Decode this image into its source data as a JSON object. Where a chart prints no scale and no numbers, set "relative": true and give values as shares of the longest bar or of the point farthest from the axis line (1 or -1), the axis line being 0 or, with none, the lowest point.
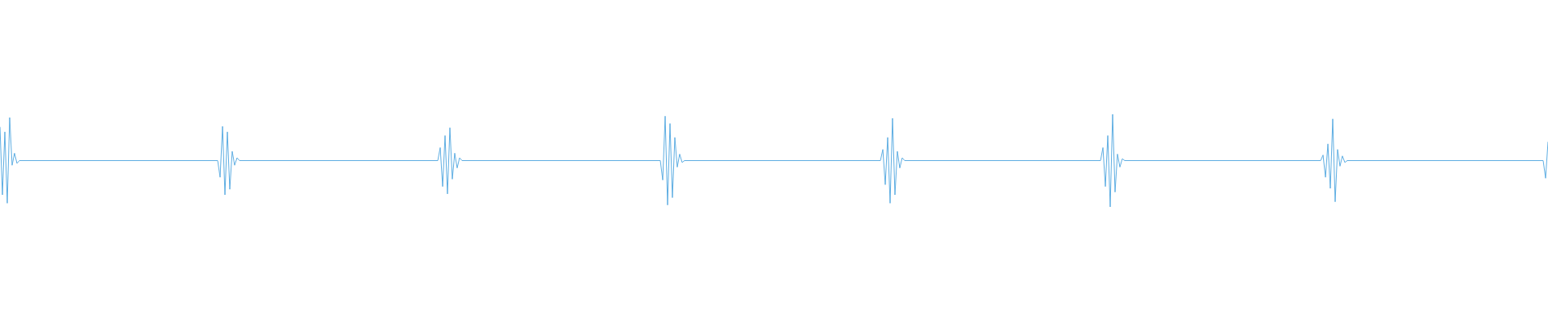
{
  "chart_data": {
    "type": "line",
    "relative": true,
    "color": "#5dade2",
    "categories": [
      null,
      null,
      null,
      null,
      null,
      null,
      null,
      null,
      null,
      null,
      null,
      null,
      null,
      null,
      null,
      null,
      null,
      null,
      null,
      null,
      null,
      null,
      null,
      null,
      null,
      null,
      null,
      null,
      null,
      null,
      null,
      null,
      null,
      null,
      null,
      null,
      null,
      null,
      null,
      null,
      null,
      null,
      null,
      null,
      null,
      null,
      null,
      null,
      null,
      null,
      null,
      null,
      null,
      null,
      null,
      null,
      null,
      null,
      null,
      null,
      null,
      null,
      null,
      null,
      null,
      null,
      null,
      null,
      null,
      null,
      null,
      null,
      null,
      null,
      null,
      null,
      null,
      null,
      null,
      null,
      null,
      null,
      null,
      null,
      null,
      null,
      null,
      null,
      null,
      null,
      null,
      null,
      null,
      null,
      null,
      null,
      null,
      null,
      null,
      null,
      null,
      null,
      null,
      null,
      null,
      null,
      null,
      null,
      null,
      null,
      null,
      null,
      null,
      null,
      null,
      null,
      null,
      null,
      null,
      null,
      null,
      null,
      null,
      null,
      null,
      null,
      null,
      null,
      null,
      null,
      null,
      null,
      null,
      null,
      null,
      null,
      null,
      null,
      null,
      null,
      null,
      null,
      null,
      null,
      null,
      null,
      null,
      null,
      null,
      null,
      null,
      null,
      null,
      null,
      null,
      null,
      null,
      null,
      null,
      null,
      null,
      null,
      null,
      null,
      null,
      null,
      null,
      null,
      null,
      null,
      null,
      null,
      null,
      null,
      null,
      null,
      null,
      null,
      null,
      null,
      null,
      null,
      null,
      null,
      null,
      null,
      null,
      null,
      null,
      null,
      null,
      null,
      null,
      null,
      null,
      null,
      null,
      null,
      null,
      null,
      null,
      null,
      null,
      null,
      null,
      null,
      null,
      null,
      null,
      null,
      null,
      null,
      null,
      null,
      null,
      null,
      null,
      null,
      null,
      null,
      null,
      null,
      null,
      null,
      null,
      null,
      null,
      null,
      null,
      null,
      null,
      null,
      null,
      null,
      null,
      null,
      null,
      null,
      null,
      null,
      null,
      null,
      null,
      null,
      null,
      null,
      null,
      null,
      null,
      null,
      null,
      null,
      null,
      null,
      null,
      null,
      null,
      null,
      null,
      null,
      null,
      null,
      null,
      null,
      null,
      null,
      null,
      null,
      null,
      null,
      null,
      null,
      null,
      null,
      null,
      null,
      null,
      null,
      null,
      null,
      null,
      null,
      null,
      null,
      null,
      null,
      null,
      null,
      null,
      null,
      null,
      null,
      null,
      null,
      null,
      null,
      null,
      null,
      null,
      null,
      null,
      null,
      null,
      null,
      null,
      null,
      null,
      null,
      null,
      null,
      null,
      null,
      null,
      null,
      null,
      null,
      null,
      null,
      null,
      null,
      null,
      null,
      null,
      null,
      null,
      null,
      null,
      null,
      null,
      null,
      null,
      null,
      null,
      null,
      null,
      null,
      null,
      null,
      null,
      null,
      null,
      null,
      null,
      null,
      null,
      null,
      null,
      null,
      null,
      null,
      null,
      null,
      null,
      null,
      null,
      null,
      null,
      null,
      null,
      null,
      null,
      null,
      null,
      null,
      null,
      null,
      null,
      null,
      null,
      null,
      null,
      null,
      null,
      null,
      null,
      null,
      null,
      null,
      null,
      null,
      null,
      null,
      null,
      null,
      null,
      null,
      null,
      null,
      null,
      null,
      null,
      null,
      null,
      null,
      null,
      null,
      null,
      null,
      null,
      null,
      null,
      null,
      null,
      null,
      null,
      null,
      null,
      null,
      null,
      null,
      null,
      null,
      null,
      null,
      null,
      null,
      null,
      null,
      null,
      null,
      null,
      null,
      null,
      null,
      null,
      null,
      null,
      null,
      null,
      null,
      null,
      null,
      null,
      null,
      null,
      null,
      null,
      null,
      null,
      null,
      null,
      null,
      null,
      null,
      null,
      null,
      null,
      null,
      null,
      null,
      null,
      null,
      null,
      null,
      null,
      null,
      null,
      null,
      null,
      null,
      null,
      null,
      null,
      null,
      null,
      null,
      null,
      null,
      null,
      null,
      null,
      null,
      null,
      null,
      null,
      null,
      null,
      null,
      null,
      null,
      null,
      null,
      null,
      null,
      null,
      null,
      null,
      null,
      null,
      null,
      null,
      null,
      null,
      null,
      null,
      null,
      null,
      null,
      null,
      null,
      null,
      null,
      null,
      null,
      null,
      null,
      null,
      null,
      null,
      null,
      null,
      null,
      null,
      null,
      null,
      null,
      null,
      null,
      null,
      null,
      null,
      null,
      null,
      null,
      null,
      null,
      null,
      null,
      null,
      null,
      null,
      null,
      null,
      null,
      null,
      null,
      null,
      null,
      null,
      null,
      null,
      null,
      null,
      null,
      null,
      null,
      null,
      null,
      null,
      null,
      null,
      null,
      null,
      null,
      null,
      null,
      null,
      null,
      null,
      null,
      null,
      null,
      null,
      null,
      null,
      null,
      null,
      null,
      null,
      null,
      null,
      null,
      null,
      null,
      null,
      null,
      null,
      null,
      null,
      null,
      null,
      null,
      null,
      null,
      null,
      null,
      null,
      null,
      null,
      null,
      null,
      null,
      null,
      null,
      null,
      null,
      null,
      null,
      null,
      null,
      null,
      null,
      null,
      null,
      null,
      null,
      null,
      null,
      null,
      null,
      null,
      null,
      null,
      null,
      null,
      null,
      null,
      null,
      null,
      null,
      null,
      null,
      null,
      null,
      null,
      null,
      null,
      null,
      null,
      null,
      null,
      null,
      null,
      null,
      null,
      null,
      null,
      null,
      null,
      null,
      null
    ],
    "values": [
      0.86,
      0.13,
      0.81,
      0.04,
      0.965,
      0.45,
      0.58,
      0.47,
      0.5,
      0.5,
      0.5,
      0.5,
      0.5,
      0.5,
      0.5,
      0.5,
      0.5,
      0.5,
      0.5,
      0.5,
      0.5,
      0.5,
      0.5,
      0.5,
      0.5,
      0.5,
      0.5,
      0.5,
      0.5,
      0.5,
      0.5,
      0.5,
      0.5,
      0.5,
      0.5,
      0.5,
      0.5,
      0.5,
      0.5,
      0.5,
      0.5,
      0.5,
      0.5,
      0.5,
      0.5,
      0.5,
      0.5,
      0.5,
      0.5,
      0.5,
      0.5,
      0.5,
      0.5,
      0.5,
      0.5,
      0.5,
      0.5,
      0.5,
      0.5,
      0.5,
      0.5,
      0.5,
      0.5,
      0.5,
      0.5,
      0.5,
      0.5,
      0.5,
      0.5,
      0.5,
      0.5,
      0.5,
      0.5,
      0.5,
      0.5,
      0.5,
      0.5,
      0.5,
      0.5,
      0.5,
      0.5,
      0.5,
      0.5,
      0.5,
      0.5,
      0.5,
      0.5,
      0.5,
      0.5,
      0.5,
      0.5,
      0.32,
      0.87,
      0.13,
      0.81,
      0.19,
      0.6,
      0.45,
      0.53,
      0.5,
      0.5,
      0.5,
      0.5,
      0.5,
      0.5,
      0.5,
      0.5,
      0.5,
      0.5,
      0.5,
      0.5,
      0.5,
      0.5,
      0.5,
      0.5,
      0.5,
      0.5,
      0.5,
      0.5,
      0.5,
      0.5,
      0.5,
      0.5,
      0.5,
      0.5,
      0.5,
      0.5,
      0.5,
      0.5,
      0.5,
      0.5,
      0.5,
      0.5,
      0.5,
      0.5,
      0.5,
      0.5,
      0.5,
      0.5,
      0.5,
      0.5,
      0.5,
      0.5,
      0.5,
      0.5,
      0.5,
      0.5,
      0.5,
      0.5,
      0.5,
      0.5,
      0.5,
      0.5,
      0.5,
      0.5,
      0.5,
      0.5,
      0.5,
      0.5,
      0.5,
      0.5,
      0.5,
      0.5,
      0.5,
      0.5,
      0.5,
      0.5,
      0.5,
      0.5,
      0.5,
      0.5,
      0.5,
      0.5,
      0.5,
      0.5,
      0.5,
      0.5,
      0.5,
      0.5,
      0.5,
      0.5,
      0.5,
      0.64,
      0.22,
      0.77,
      0.14,
      0.855,
      0.3,
      0.58,
      0.42,
      0.53,
      0.5,
      0.5,
      0.5,
      0.5,
      0.5,
      0.5,
      0.5,
      0.5,
      0.5,
      0.5,
      0.5,
      0.5,
      0.5,
      0.5,
      0.5,
      0.5,
      0.5,
      0.5,
      0.5,
      0.5,
      0.5,
      0.5,
      0.5,
      0.5,
      0.5,
      0.5,
      0.5,
      0.5,
      0.5,
      0.5,
      0.5,
      0.5,
      0.5,
      0.5,
      0.5,
      0.5,
      0.5,
      0.5,
      0.5,
      0.5,
      0.5,
      0.5,
      0.5,
      0.5,
      0.5,
      0.5,
      0.5,
      0.5,
      0.5,
      0.5,
      0.5,
      0.5,
      0.5,
      0.5,
      0.5,
      0.5,
      0.5,
      0.5,
      0.5,
      0.5,
      0.5,
      0.5,
      0.5,
      0.5,
      0.5,
      0.5,
      0.5,
      0.5,
      0.5,
      0.5,
      0.5,
      0.5,
      0.5,
      0.5,
      0.5,
      0.5,
      0.5,
      0.5,
      0.5,
      0.5,
      0.5,
      0.5,
      0.5,
      0.29,
      0.98,
      0.02,
      0.9,
      0.1,
      0.75,
      0.43,
      0.57,
      0.48,
      0.5,
      0.5,
      0.5,
      0.5,
      0.5,
      0.5,
      0.5,
      0.5,
      0.5,
      0.5,
      0.5,
      0.5,
      0.5,
      0.5,
      0.5,
      0.5,
      0.5,
      0.5,
      0.5,
      0.5,
      0.5,
      0.5,
      0.5,
      0.5,
      0.5,
      0.5,
      0.5,
      0.5,
      0.5,
      0.5,
      0.5,
      0.5,
      0.5,
      0.5,
      0.5,
      0.5,
      0.5,
      0.5,
      0.5,
      0.5,
      0.5,
      0.5,
      0.5,
      0.5,
      0.5,
      0.5,
      0.5,
      0.5,
      0.5,
      0.5,
      0.5,
      0.5,
      0.5,
      0.5,
      0.5,
      0.5,
      0.5,
      0.5,
      0.5,
      0.5,
      0.5,
      0.5,
      0.5,
      0.5,
      0.5,
      0.5,
      0.5,
      0.5,
      0.5,
      0.5,
      0.5,
      0.5,
      0.5,
      0.5,
      0.5,
      0.5,
      0.5,
      0.5,
      0.5,
      0.5,
      0.5,
      0.5,
      0.62,
      0.24,
      0.75,
      0.04,
      0.957,
      0.13,
      0.6,
      0.42,
      0.53,
      0.5,
      0.5,
      0.5,
      0.5,
      0.5,
      0.5,
      0.5,
      0.5,
      0.5,
      0.5,
      0.5,
      0.5,
      0.5,
      0.5,
      0.5,
      0.5,
      0.5,
      0.5,
      0.5,
      0.5,
      0.5,
      0.5,
      0.5,
      0.5,
      0.5,
      0.5,
      0.5,
      0.5,
      0.5,
      0.5,
      0.5,
      0.5,
      0.5,
      0.5,
      0.5,
      0.5,
      0.5,
      0.5,
      0.5,
      0.5,
      0.5,
      0.5,
      0.5,
      0.5,
      0.5,
      0.5,
      0.5,
      0.5,
      0.5,
      0.5,
      0.5,
      0.5,
      0.5,
      0.5,
      0.5,
      0.5,
      0.5,
      0.5,
      0.5,
      0.5,
      0.5,
      0.5,
      0.5,
      0.5,
      0.5,
      0.5,
      0.5,
      0.5,
      0.5,
      0.5,
      0.5,
      0.5,
      0.5,
      0.5,
      0.5,
      0.5,
      0.5,
      0.5,
      0.5,
      0.5,
      0.5,
      0.5,
      0.64,
      0.22,
      0.77,
      0,
      1,
      0.16,
      0.57,
      0.43,
      0.52,
      0.5,
      0.5,
      0.5,
      0.5,
      0.5,
      0.5,
      0.5,
      0.5,
      0.5,
      0.5,
      0.5,
      0.5,
      0.5,
      0.5,
      0.5,
      0.5,
      0.5,
      0.5,
      0.5,
      0.5,
      0.5,
      0.5,
      0.5,
      0.5,
      0.5,
      0.5,
      0.5,
      0.5,
      0.5,
      0.5,
      0.5,
      0.5,
      0.5,
      0.5,
      0.5,
      0.5,
      0.5,
      0.5,
      0.5,
      0.5,
      0.5,
      0.5,
      0.5,
      0.5,
      0.5,
      0.5,
      0.5,
      0.5,
      0.5,
      0.5,
      0.5,
      0.5,
      0.5,
      0.5,
      0.5,
      0.5,
      0.5,
      0.5,
      0.5,
      0.5,
      0.5,
      0.5,
      0.5,
      0.5,
      0.5,
      0.5,
      0.5,
      0.5,
      0.5,
      0.5,
      0.5,
      0.5,
      0.5,
      0.5,
      0.5,
      0.5,
      0.5,
      0.5,
      0.5,
      0.5,
      0.5,
      0.5,
      0.56,
      0.32,
      0.68,
      0.2,
      0.95,
      0.055,
      0.62,
      0.44,
      0.55,
      0.48,
      0.5,
      0.5,
      0.5,
      0.5,
      0.5,
      0.5,
      0.5,
      0.5,
      0.5,
      0.5,
      0.5,
      0.5,
      0.5,
      0.5,
      0.5,
      0.5,
      0.5,
      0.5,
      0.5,
      0.5,
      0.5,
      0.5,
      0.5,
      0.5,
      0.5,
      0.5,
      0.5,
      0.5,
      0.5,
      0.5,
      0.5,
      0.5,
      0.5,
      0.5,
      0.5,
      0.5,
      0.5,
      0.5,
      0.5,
      0.5,
      0.5,
      0.5,
      0.5,
      0.5,
      0.5,
      0.5,
      0.5,
      0.5,
      0.5,
      0.5,
      0.5,
      0.5,
      0.5,
      0.5,
      0.5,
      0.5,
      0.5,
      0.5,
      0.5,
      0.5,
      0.5,
      0.5,
      0.5,
      0.5,
      0.5,
      0.5,
      0.5,
      0.5,
      0.5,
      0.5,
      0.5,
      0.5,
      0.5,
      0.5,
      0.5,
      0.5,
      0.5,
      0.5,
      0.5,
      0.5,
      0.5,
      0.5,
      0.31,
      0.7
    ]
  }
}
